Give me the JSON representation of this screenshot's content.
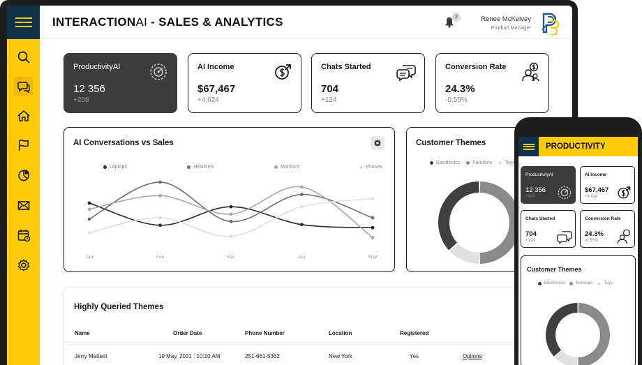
{
  "app": {
    "title_bold": "INTERACTION",
    "title_thin": "AI",
    "title_rest": " - SALES & ANALYTICS"
  },
  "notifications": {
    "count": "2"
  },
  "user": {
    "name": "Renee McKelvey",
    "role": "Product Manager"
  },
  "colors": {
    "accent": "#ffcb08",
    "navy": "#0e3348",
    "dark_card": "#3c3c3c"
  },
  "sidebar": {
    "items": [
      {
        "name": "search-icon",
        "active": false
      },
      {
        "name": "chat-bubbles-icon",
        "active": true
      },
      {
        "name": "home-icon",
        "active": false
      },
      {
        "name": "flag-icon",
        "active": false
      },
      {
        "name": "pie-chart-icon",
        "active": false
      },
      {
        "name": "mail-icon",
        "active": false
      },
      {
        "name": "calendar-icon",
        "active": false
      },
      {
        "name": "gear-icon",
        "active": false
      }
    ]
  },
  "kpis": [
    {
      "title": "ProductivityAI",
      "value": "12 356",
      "sub": "+208",
      "icon": "gauge-icon"
    },
    {
      "title": "AI Income",
      "value": "$67,467",
      "sub": "+4,624",
      "icon": "dollar-cycle-icon"
    },
    {
      "title": "Chats Started",
      "value": "704",
      "sub": "+124",
      "icon": "chat-icon"
    },
    {
      "title": "Conversion Rate",
      "value": "24.3%",
      "sub": "-0.55%",
      "icon": "user-dollar-icon"
    }
  ],
  "line_panel": {
    "title": "AI Conversations vs Sales"
  },
  "themes_panel": {
    "title": "Customer Themes"
  },
  "chart_data": [
    {
      "type": "line",
      "title": "AI Conversations vs Sales",
      "categories": [
        "Jan",
        "Feb",
        "Mar",
        "Apr",
        "May"
      ],
      "series": [
        {
          "name": "Laptops",
          "color": "#2a2a2a",
          "values": [
            68,
            32,
            62,
            33,
            28
          ]
        },
        {
          "name": "Headsets",
          "color": "#707070",
          "values": [
            42,
            102,
            38,
            82,
            44
          ]
        },
        {
          "name": "Monitors",
          "color": "#a8a8a8",
          "values": [
            58,
            80,
            50,
            94,
            12
          ]
        },
        {
          "name": "Phones",
          "color": "#e0e0e0",
          "values": [
            20,
            44,
            14,
            62,
            75
          ]
        }
      ],
      "ylim": [
        0,
        120
      ],
      "grid": false,
      "legend": "top"
    },
    {
      "type": "pie",
      "title": "Customer Themes",
      "donut": true,
      "labels": [
        "Electronics",
        "Furniture",
        "Toys"
      ],
      "colors": [
        "#3f3f3f",
        "#8a8a8a",
        "#e0e0e0"
      ],
      "values": [
        37,
        50,
        13
      ],
      "legend": "top"
    }
  ],
  "table": {
    "title": "Highly Queried Themes",
    "columns": [
      "Name",
      "Order Date",
      "Phone Number",
      "Location",
      "Registered"
    ],
    "rows": [
      {
        "name": "Jerry Mattedi",
        "order_date": "19 May, 2021 : 10:10 AM",
        "phone": "251-661-5362",
        "location": "New York",
        "registered": "Yes",
        "action": "Options"
      }
    ]
  },
  "mobile": {
    "title": "PRODUCTIVITY",
    "kpis": [
      {
        "title": "ProductivityAI",
        "value": "12 356",
        "sub": "+208"
      },
      {
        "title": "AI Income",
        "value": "$67,467",
        "sub": "+4,624"
      },
      {
        "title": "Chats Started",
        "value": "704",
        "sub": "+124"
      },
      {
        "title": "Conversion Rate",
        "value": "24.3%",
        "sub": "-0.55%"
      }
    ],
    "panel_title": "Customer Themes"
  }
}
